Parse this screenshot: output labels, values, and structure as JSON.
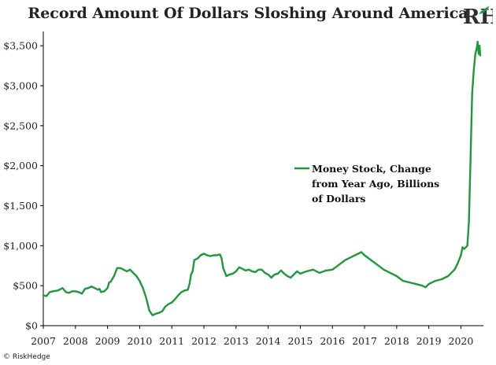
{
  "header": {
    "title": "Record Amount Of Dollars Sloshing Around America",
    "logo_text": "RH"
  },
  "footer": {
    "copyright": "© RiskHedge"
  },
  "colors": {
    "series": "#1e9a3c",
    "axis": "#000000",
    "logo": "#2e2e2e"
  },
  "chart_data": {
    "type": "line",
    "title": "Record Amount Of Dollars Sloshing Around America",
    "xlabel": "",
    "ylabel": "",
    "xlim": [
      2007.0,
      2020.7
    ],
    "ylim": [
      0,
      3600
    ],
    "grid": false,
    "legend_position": "center-right",
    "x_ticks": [
      2007,
      2008,
      2009,
      2010,
      2011,
      2012,
      2013,
      2014,
      2015,
      2016,
      2017,
      2018,
      2019,
      2020
    ],
    "x_tick_labels": [
      "2007",
      "2008",
      "2009",
      "2010",
      "2011",
      "2012",
      "2013",
      "2014",
      "2015",
      "2016",
      "2017",
      "2018",
      "2019",
      "2020"
    ],
    "y_ticks": [
      0,
      500,
      1000,
      1500,
      2000,
      2500,
      3000,
      3500
    ],
    "y_tick_labels": [
      "$0",
      "$500",
      "$1,000",
      "$1,500",
      "$2,000",
      "$2,500",
      "$3,000",
      "$3,500"
    ],
    "legend_lines": [
      "Money Stock, Change",
      "from Year Ago, Billions",
      "of Dollars"
    ],
    "series": [
      {
        "name": "Money Stock, Change from Year Ago, Billions of Dollars",
        "x": [
          2007.0,
          2007.1,
          2007.2,
          2007.3,
          2007.45,
          2007.6,
          2007.7,
          2007.8,
          2007.9,
          2008.0,
          2008.1,
          2008.2,
          2008.3,
          2008.4,
          2008.5,
          2008.6,
          2008.7,
          2008.75,
          2008.8,
          2008.9,
          2009.0,
          2009.05,
          2009.1,
          2009.2,
          2009.3,
          2009.4,
          2009.5,
          2009.6,
          2009.7,
          2009.75,
          2009.8,
          2009.9,
          2010.0,
          2010.1,
          2010.2,
          2010.3,
          2010.4,
          2010.5,
          2010.6,
          2010.7,
          2010.8,
          2010.9,
          2011.0,
          2011.1,
          2011.2,
          2011.3,
          2011.4,
          2011.5,
          2011.55,
          2011.6,
          2011.65,
          2011.7,
          2011.8,
          2011.9,
          2012.0,
          2012.1,
          2012.2,
          2012.3,
          2012.4,
          2012.5,
          2012.55,
          2012.6,
          2012.7,
          2012.8,
          2012.9,
          2013.0,
          2013.1,
          2013.2,
          2013.3,
          2013.4,
          2013.5,
          2013.6,
          2013.7,
          2013.8,
          2013.9,
          2014.0,
          2014.1,
          2014.2,
          2014.3,
          2014.4,
          2014.5,
          2014.6,
          2014.7,
          2014.8,
          2014.9,
          2015.0,
          2015.2,
          2015.4,
          2015.6,
          2015.8,
          2016.0,
          2016.2,
          2016.4,
          2016.6,
          2016.8,
          2016.9,
          2017.0,
          2017.2,
          2017.4,
          2017.6,
          2017.8,
          2018.0,
          2018.2,
          2018.4,
          2018.6,
          2018.8,
          2018.9,
          2019.0,
          2019.2,
          2019.4,
          2019.6,
          2019.8,
          2019.9,
          2020.0,
          2020.05,
          2020.1,
          2020.15,
          2020.2,
          2020.25,
          2020.3,
          2020.35,
          2020.4,
          2020.45,
          2020.5,
          2020.52,
          2020.55,
          2020.58,
          2020.6
        ],
        "values": [
          380,
          370,
          420,
          430,
          440,
          470,
          420,
          410,
          430,
          430,
          420,
          400,
          460,
          470,
          490,
          470,
          450,
          460,
          420,
          430,
          470,
          540,
          550,
          620,
          720,
          720,
          700,
          680,
          700,
          680,
          660,
          620,
          560,
          470,
          350,
          190,
          130,
          150,
          160,
          180,
          240,
          270,
          290,
          330,
          380,
          420,
          440,
          450,
          520,
          640,
          680,
          820,
          840,
          880,
          900,
          880,
          870,
          880,
          880,
          890,
          840,
          720,
          620,
          640,
          650,
          680,
          730,
          710,
          690,
          700,
          680,
          670,
          700,
          700,
          660,
          640,
          600,
          640,
          650,
          690,
          650,
          620,
          600,
          640,
          680,
          650,
          680,
          700,
          660,
          690,
          700,
          760,
          820,
          860,
          900,
          920,
          880,
          820,
          760,
          700,
          660,
          620,
          560,
          540,
          520,
          500,
          480,
          520,
          560,
          580,
          620,
          700,
          780,
          880,
          980,
          960,
          980,
          1000,
          1300,
          2100,
          2900,
          3200,
          3400,
          3480,
          3550,
          3400,
          3500,
          3380
        ]
      }
    ]
  }
}
